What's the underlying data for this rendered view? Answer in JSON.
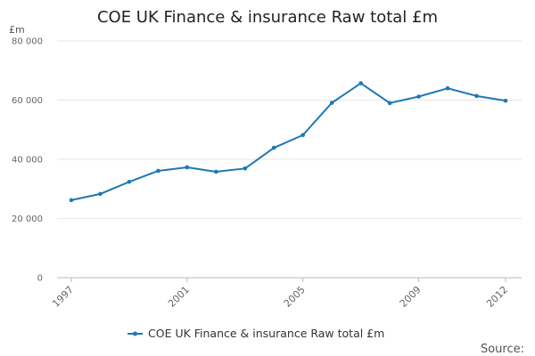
{
  "chart_data": {
    "type": "line",
    "title": "COE UK Finance & insurance Raw total £m",
    "ylabel": "£m",
    "xlabel": "",
    "ylim": [
      0,
      80000
    ],
    "yticks": [
      0,
      20000,
      40000,
      60000,
      80000
    ],
    "ytick_labels": [
      "0",
      "20 000",
      "40 000",
      "60 000",
      "80 000"
    ],
    "x": [
      1997,
      1998,
      1999,
      2000,
      2001,
      2002,
      2003,
      2004,
      2005,
      2006,
      2007,
      2008,
      2009,
      2010,
      2011,
      2012
    ],
    "xtick_labels": [
      "1997",
      "2001",
      "2005",
      "2009",
      "2012"
    ],
    "series": [
      {
        "name": "COE UK Finance & insurance Raw total £m",
        "color": "#1f77b4",
        "values": [
          26200,
          28300,
          32400,
          36100,
          37300,
          35800,
          36900,
          43900,
          48200,
          59100,
          65700,
          59000,
          61200,
          64000,
          61400,
          59800
        ]
      }
    ],
    "grid": true,
    "legend": "bottom-center"
  },
  "footer": {
    "source_label": "Source:"
  }
}
